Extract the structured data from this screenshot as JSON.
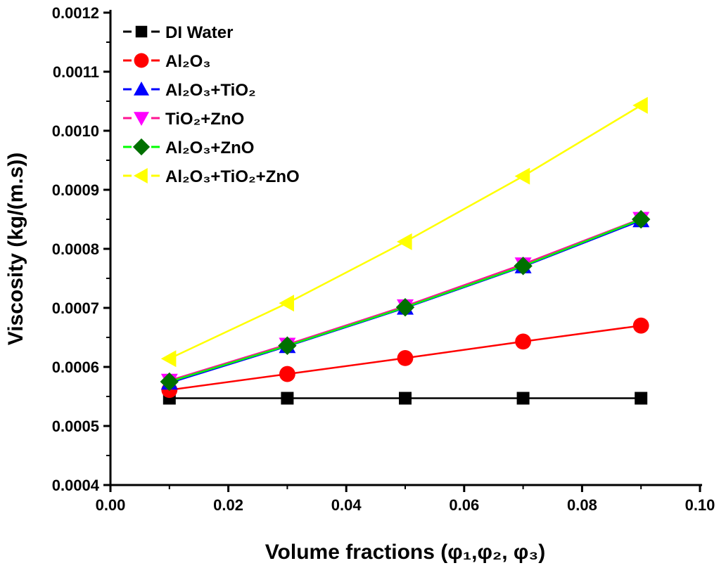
{
  "chart_data": {
    "type": "line",
    "title": "",
    "xlabel": "Volume fractions (φ₁,φ₂, φ₃)",
    "ylabel": "Viscosity (kg/(m.s))",
    "xlim": [
      0.0,
      0.1
    ],
    "ylim": [
      0.0004,
      0.0012
    ],
    "xticks": [
      "0.00",
      "0.02",
      "0.04",
      "0.06",
      "0.08",
      "0.10"
    ],
    "yticks": [
      "0.0004",
      "0.0005",
      "0.0006",
      "0.0007",
      "0.0008",
      "0.0009",
      "0.0010",
      "0.0011",
      "0.0012"
    ],
    "legend_position": "top-left",
    "grid": false,
    "x": [
      0.01,
      0.03,
      0.05,
      0.07,
      0.09
    ],
    "series": [
      {
        "name": "DI Water",
        "line_color": "#000000",
        "marker_color": "#000000",
        "marker": "square",
        "values": [
          0.000547,
          0.000547,
          0.000547,
          0.000547,
          0.000547
        ]
      },
      {
        "name": "Al₂O₃",
        "line_color": "#ff0000",
        "marker_color": "#ff0000",
        "marker": "circle",
        "values": [
          0.000561,
          0.000588,
          0.000615,
          0.000643,
          0.00067
        ]
      },
      {
        "name": "Al₂O₃+TiO₂",
        "line_color": "#0000ff",
        "marker_color": "#0000ff",
        "marker": "triangle-up",
        "values": [
          0.000573,
          0.000635,
          0.0007,
          0.00077,
          0.000848
        ]
      },
      {
        "name": "TiO₂+ZnO",
        "line_color": "#ff1493",
        "marker_color": "#ff00ff",
        "marker": "triangle-down",
        "values": [
          0.000577,
          0.000638,
          0.000703,
          0.000774,
          0.000851
        ]
      },
      {
        "name": "Al₂O₃+ZnO",
        "line_color": "#00ff00",
        "marker_color": "#007000",
        "marker": "diamond",
        "values": [
          0.000575,
          0.000636,
          0.000701,
          0.000771,
          0.00085
        ]
      },
      {
        "name": "Al₂O₃+TiO₂+ZnO",
        "line_color": "#ffff00",
        "marker_color": "#ffff00",
        "marker": "triangle-left",
        "values": [
          0.000614,
          0.000708,
          0.000812,
          0.000923,
          0.001043
        ]
      }
    ]
  }
}
